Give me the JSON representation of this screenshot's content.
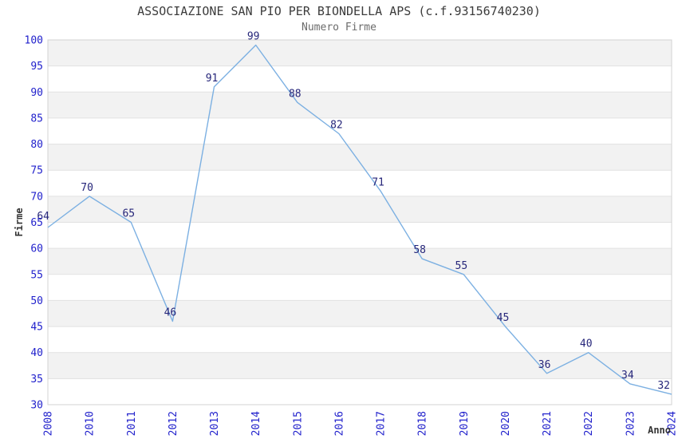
{
  "chart_data": {
    "type": "line",
    "title": "ASSOCIAZIONE SAN PIO PER BIONDELLA APS (c.f.93156740230)",
    "subtitle": "Numero Firme",
    "xlabel": "Anno",
    "ylabel": "Firme",
    "categories": [
      "2008",
      "2010",
      "2011",
      "2012",
      "2013",
      "2014",
      "2015",
      "2016",
      "2017",
      "2018",
      "2019",
      "2020",
      "2021",
      "2022",
      "2023",
      "2024"
    ],
    "values": [
      64,
      70,
      65,
      46,
      91,
      99,
      88,
      82,
      71,
      58,
      55,
      45,
      36,
      40,
      34,
      32
    ],
    "ylim": [
      30,
      100
    ],
    "ytick_step": 5,
    "grid": true,
    "alternating_bands": true,
    "legend": "none",
    "colors": {
      "line": "#7cb0e2",
      "tick_label": "#2222cc",
      "data_label": "#26267a",
      "band": "#f2f2f2",
      "grid": "#e1e1e1",
      "border": "#d3d3d3",
      "title": "#3c3c3c",
      "subtitle": "#6b6b6b",
      "axis_title": "#333333",
      "background": "#ffffff"
    }
  }
}
